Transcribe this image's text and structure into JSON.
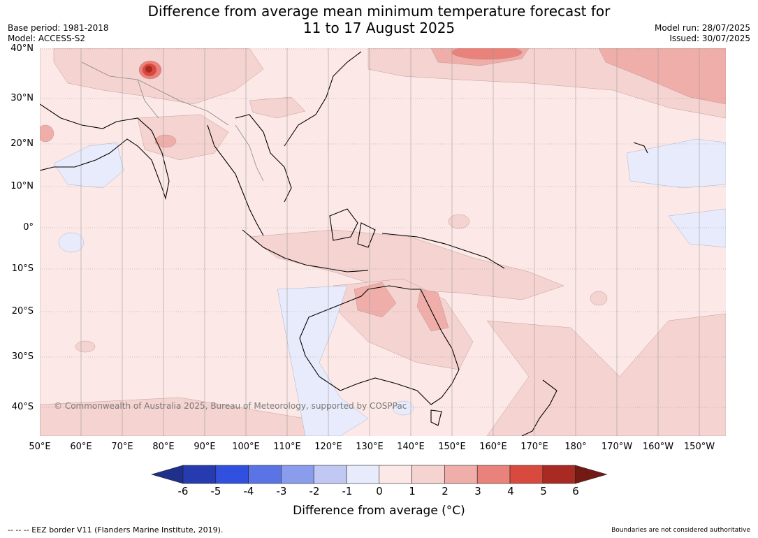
{
  "title": {
    "line1": "Difference from average mean minimum temperature forecast for",
    "line2": "11 to 17 August 2025"
  },
  "meta_left": {
    "base_period": "Base period: 1981-2018",
    "model": "Model: ACCESS-S2"
  },
  "meta_right": {
    "model_run": "Model run: 28/07/2025",
    "issued": "Issued: 30/07/2025"
  },
  "map": {
    "lat_ticks": [
      "40°N",
      "30°N",
      "20°N",
      "10°N",
      "0°",
      "10°S",
      "20°S",
      "30°S",
      "40°S"
    ],
    "lon_ticks": [
      "50°E",
      "60°E",
      "70°E",
      "80°E",
      "90°E",
      "100°E",
      "110°E",
      "120°E",
      "130°E",
      "140°E",
      "150°E",
      "160°E",
      "170°E",
      "180°",
      "170°W",
      "160°W",
      "150°W"
    ],
    "copyright": "© Commonwealth of Australia 2025, Bureau of Meteorology, supported by COSPPac"
  },
  "colorbar": {
    "ticks": [
      "-6",
      "-5",
      "-4",
      "-3",
      "-2",
      "-1",
      "0",
      "1",
      "2",
      "3",
      "4",
      "5",
      "6"
    ],
    "colors": [
      "#1f2f8c",
      "#263bb0",
      "#3150df",
      "#5a74e6",
      "#8a9ded",
      "#c1c8f3",
      "#e8ebfb",
      "#fce9e7",
      "#f5d3d0",
      "#efaeaa",
      "#e8827a",
      "#d94a3e",
      "#a92a22",
      "#731a15"
    ],
    "label": "Difference from average (°C)"
  },
  "footer": {
    "eez": "--  --  -- EEZ border V11 (Flanders Marine Institute, 2019).",
    "boundaries": "Boundaries are not considered authoritative"
  }
}
